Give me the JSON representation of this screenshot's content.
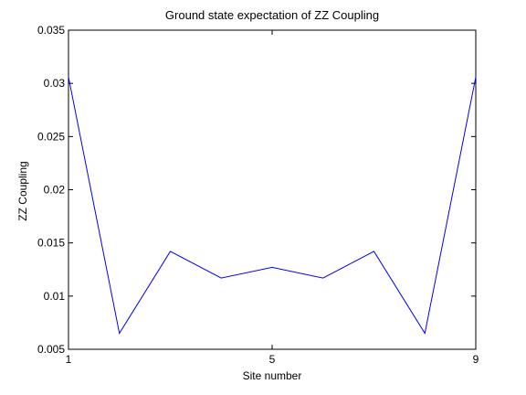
{
  "chart_data": {
    "type": "line",
    "title": "Ground state expectation of ZZ Coupling",
    "xlabel": "Site number",
    "ylabel": "ZZ Coupling",
    "xlim": [
      1,
      9
    ],
    "ylim": [
      0.005,
      0.035
    ],
    "xticks": [
      1,
      5,
      9
    ],
    "xtick_labels": [
      "1",
      "5",
      "9"
    ],
    "yticks": [
      0.005,
      0.01,
      0.015,
      0.02,
      0.025,
      0.03,
      0.035
    ],
    "ytick_labels": [
      "0.005",
      "0.01",
      "0.015",
      "0.02",
      "0.025",
      "0.03",
      "0.035"
    ],
    "grid": false,
    "series": [
      {
        "color": "#0000ff",
        "x": [
          1,
          2,
          3,
          4,
          5,
          6,
          7,
          8,
          9
        ],
        "y": [
          0.0306,
          0.0065,
          0.0142,
          0.0117,
          0.0127,
          0.0117,
          0.0142,
          0.0065,
          0.0306
        ]
      }
    ]
  }
}
